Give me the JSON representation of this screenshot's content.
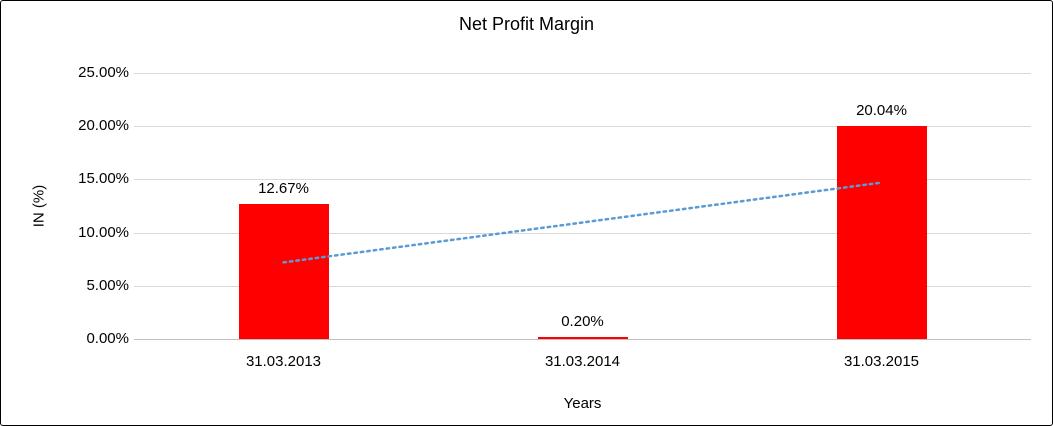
{
  "chart_data": {
    "type": "bar",
    "title": "Net Profit Margin",
    "categories": [
      "31.03.2013",
      "31.03.2014",
      "31.03.2015"
    ],
    "values": [
      12.67,
      0.2,
      20.04
    ],
    "data_labels": [
      "12.67%",
      "0.20%",
      "20.04%"
    ],
    "xlabel": "Years",
    "ylabel": "IN (%)",
    "ylim": [
      0,
      25
    ],
    "ytick_step": 5,
    "ytick_labels": [
      "0.00%",
      "5.00%",
      "10.00%",
      "15.00%",
      "20.00%",
      "25.00%"
    ],
    "grid": true,
    "legend": false,
    "bar_color": "#ff0000",
    "gridline_color": "#d9d9d9",
    "axis_line_color": "#bfbfbf",
    "trendline": {
      "style": "dotted",
      "color": "#5b9bd5",
      "start_value": 7.2,
      "end_value": 14.7
    }
  }
}
